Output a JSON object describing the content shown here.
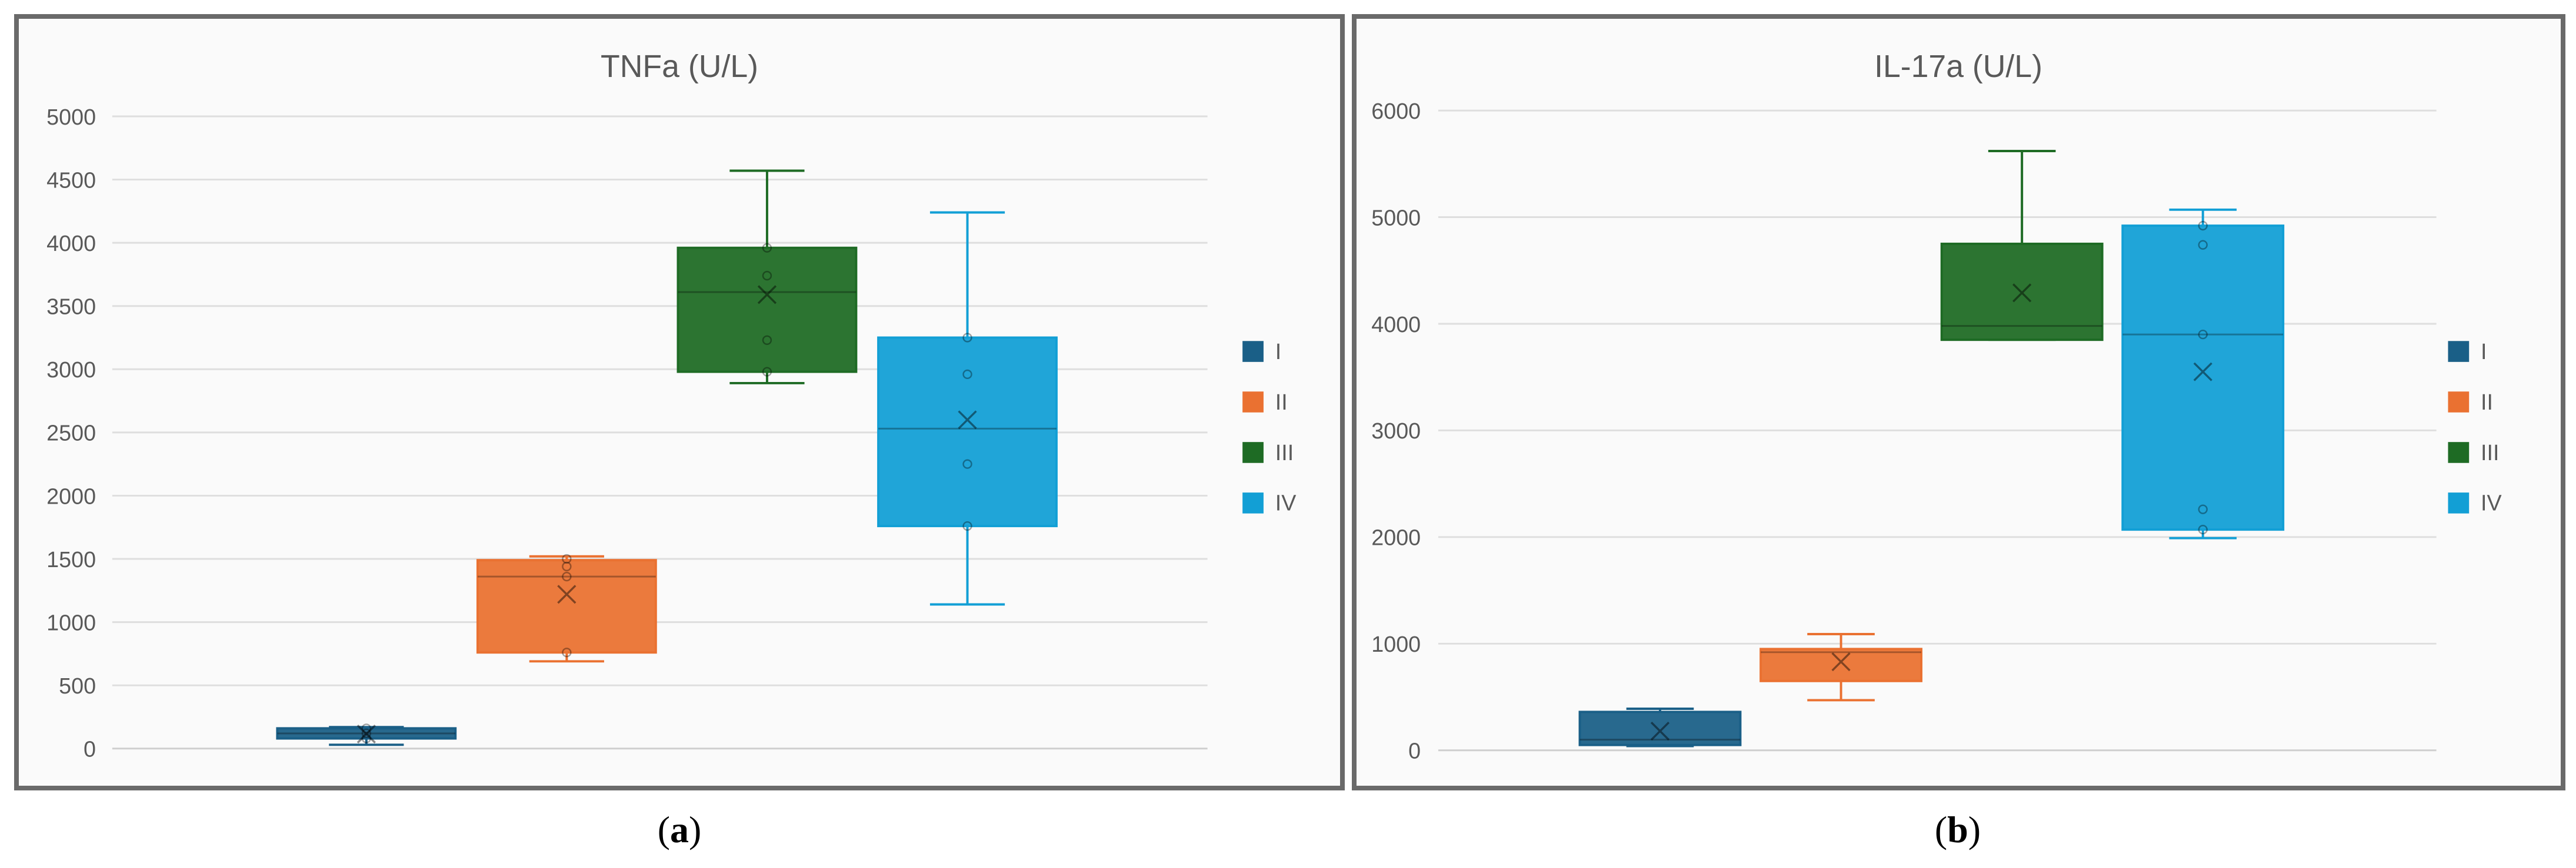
{
  "chart_data": [
    {
      "type": "box",
      "title": "TNFa (U/L)",
      "ylim": [
        0,
        5000
      ],
      "yticks": [
        0,
        500,
        1000,
        1500,
        2000,
        2500,
        3000,
        3500,
        4000,
        4500,
        5000
      ],
      "grid": true,
      "legend_position": "right",
      "series": [
        {
          "name": "I",
          "color": "#1a5f87",
          "min": 30,
          "q1": 80,
          "median": 120,
          "q3": 160,
          "max": 170,
          "mean": 115,
          "points": [
            80,
            120,
            160
          ]
        },
        {
          "name": "II",
          "color": "#ea7131",
          "min": 690,
          "q1": 760,
          "median": 1360,
          "q3": 1490,
          "max": 1520,
          "mean": 1220,
          "points": [
            760,
            1360,
            1440,
            1500
          ]
        },
        {
          "name": "III",
          "color": "#1e6b24",
          "min": 2890,
          "q1": 2980,
          "median": 3610,
          "q3": 3960,
          "max": 4570,
          "mean": 3590,
          "points": [
            2980,
            3230,
            3740,
            3960
          ]
        },
        {
          "name": "IV",
          "color": "#129fd5",
          "min": 1140,
          "q1": 1760,
          "median": 2530,
          "q3": 3250,
          "max": 4240,
          "mean": 2600,
          "points": [
            1760,
            2250,
            2960,
            3250
          ]
        }
      ]
    },
    {
      "type": "box",
      "title": "IL-17a (U/L)",
      "ylim": [
        0,
        6000
      ],
      "yticks": [
        0,
        1000,
        2000,
        3000,
        4000,
        5000,
        6000
      ],
      "grid": true,
      "legend_position": "right",
      "series": [
        {
          "name": "I",
          "color": "#1a5f87",
          "min": 40,
          "q1": 50,
          "median": 100,
          "q3": 360,
          "max": 390,
          "mean": 180,
          "points": []
        },
        {
          "name": "II",
          "color": "#ea7131",
          "min": 470,
          "q1": 650,
          "median": 920,
          "q3": 950,
          "max": 1090,
          "mean": 830,
          "points": []
        },
        {
          "name": "III",
          "color": "#1e6b24",
          "min": 3850,
          "q1": 3850,
          "median": 3980,
          "q3": 4750,
          "max": 5620,
          "mean": 4290,
          "points": []
        },
        {
          "name": "IV",
          "color": "#129fd5",
          "min": 1990,
          "q1": 2070,
          "median": 3900,
          "q3": 4920,
          "max": 5070,
          "mean": 3550,
          "points": [
            2070,
            2260,
            3900,
            4740,
            4920
          ]
        }
      ]
    }
  ],
  "captions": [
    {
      "letter": "a"
    },
    {
      "letter": "b"
    }
  ]
}
